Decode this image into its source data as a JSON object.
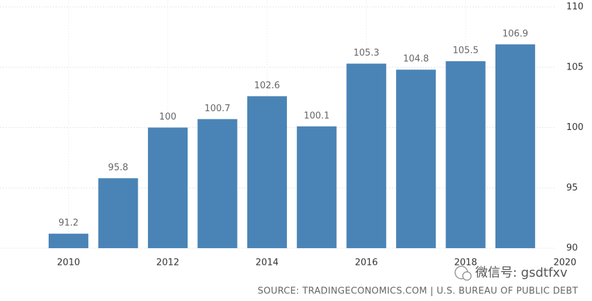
{
  "chart_data": {
    "type": "bar",
    "x": [
      2010,
      2011,
      2012,
      2013,
      2014,
      2015,
      2016,
      2017,
      2018,
      2019
    ],
    "values": [
      91.2,
      95.8,
      100,
      100.7,
      102.6,
      100.1,
      105.3,
      104.8,
      105.5,
      106.9
    ],
    "color": "#4a84b6",
    "xlim": [
      2008.62,
      2020
    ],
    "xticks": [
      2010,
      2012,
      2014,
      2016,
      2018,
      2020
    ],
    "ylim": [
      90,
      110
    ],
    "yticks": [
      90,
      95,
      100,
      105,
      110
    ],
    "grid": true,
    "source": "SOURCE: TRADINGECONOMICS.COM | U.S. BUREAU OF PUBLIC DEBT",
    "watermark": "微信号: gsdtfxv"
  }
}
